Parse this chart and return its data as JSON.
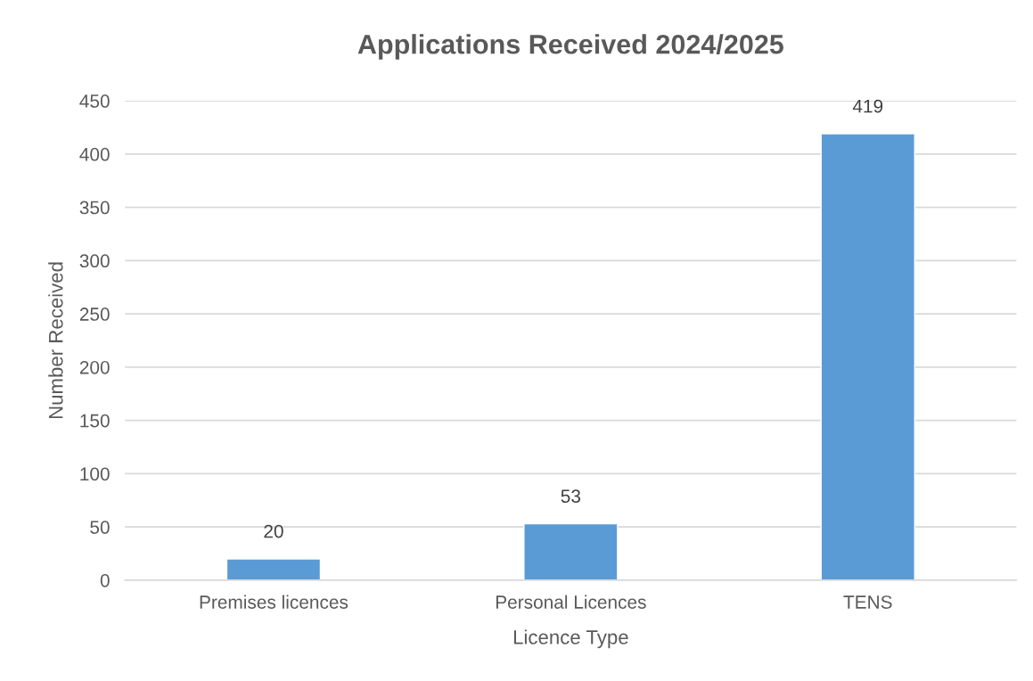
{
  "chart_data": {
    "type": "bar",
    "title": "Applications Received 2024/2025",
    "xlabel": "Licence Type",
    "ylabel": "Number Received",
    "categories": [
      "Premises licences",
      "Personal Licences",
      "TENS"
    ],
    "values": [
      20,
      53,
      419
    ],
    "color": "#5b9bd5",
    "ylim": [
      0,
      450
    ],
    "yticks": [
      0,
      50,
      100,
      150,
      200,
      250,
      300,
      350,
      400,
      450
    ],
    "grid": "y",
    "data_labels": true
  }
}
